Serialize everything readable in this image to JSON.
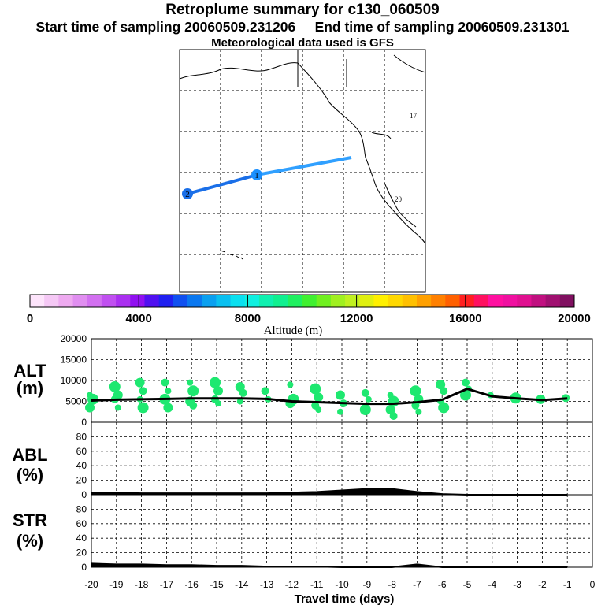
{
  "header": {
    "title": "Retroplume summary for c130_060509",
    "start_label": "Start time of sampling 20060509.231206",
    "end_label": "End time of sampling 20060509.231301",
    "met_label": "Meteorological data used is GFS"
  },
  "map": {
    "markers": [
      {
        "label": "1"
      },
      {
        "label": "2"
      }
    ],
    "annotations": [
      "17",
      "20"
    ]
  },
  "colorbar": {
    "title": "Altitude (m)",
    "tick_labels": [
      "0",
      "4000",
      "8000",
      "12000",
      "16000",
      "20000"
    ],
    "colors": [
      "#fde4fb",
      "#f5c8f5",
      "#eeaaf0",
      "#e08ef0",
      "#d270f0",
      "#c050f0",
      "#aa30f0",
      "#9010f0",
      "#5010f0",
      "#2020f0",
      "#1050f0",
      "#0a78f0",
      "#0aa0f0",
      "#0ac0f0",
      "#0ae0f0",
      "#10f0e0",
      "#10f0b0",
      "#10f090",
      "#20f060",
      "#40f030",
      "#70f020",
      "#a0f020",
      "#c0f020",
      "#e0f010",
      "#fff000",
      "#ffd800",
      "#ffc000",
      "#ffa000",
      "#ff8000",
      "#ff6000",
      "#ff2020",
      "#ff1060",
      "#ff10a0",
      "#f010a0",
      "#e01090",
      "#c01080",
      "#a01070",
      "#801060"
    ]
  },
  "chart_data": [
    {
      "type": "line",
      "panel": "altitude",
      "ylabel_line1": "ALT",
      "ylabel_line2": "(m)",
      "ylim": [
        0,
        20000
      ],
      "yticks": [
        "0",
        "5000",
        "10000",
        "15000",
        "20000"
      ],
      "x": [
        -20,
        -19,
        -18,
        -17,
        -16,
        -15,
        -14,
        -13,
        -12,
        -11,
        -10,
        -9,
        -8,
        -7,
        -6,
        -5,
        -4,
        -3,
        -2,
        -1
      ],
      "values": [
        5200,
        5400,
        5500,
        5600,
        5700,
        5700,
        5700,
        5600,
        5000,
        4800,
        4600,
        4400,
        4400,
        4800,
        5400,
        8000,
        6200,
        5700,
        5300,
        5700
      ],
      "spread": [
        {
          "x": -20,
          "alts": [
            6500,
            5500,
            3500
          ]
        },
        {
          "x": -19,
          "alts": [
            8500,
            6500,
            5500,
            3500
          ]
        },
        {
          "x": -18,
          "alts": [
            9500,
            7500,
            5500,
            3500
          ]
        },
        {
          "x": -17,
          "alts": [
            9500,
            7500,
            5500,
            3500
          ]
        },
        {
          "x": -16,
          "alts": [
            9500,
            7500,
            5000,
            4000
          ]
        },
        {
          "x": -15,
          "alts": [
            9500,
            7500,
            5500,
            4500
          ]
        },
        {
          "x": -14,
          "alts": [
            8500,
            7000,
            5000
          ]
        },
        {
          "x": -13,
          "alts": [
            7500,
            5500
          ]
        },
        {
          "x": -12,
          "alts": [
            9000,
            5500,
            4500
          ]
        },
        {
          "x": -11,
          "alts": [
            8000,
            6000,
            4000,
            3000
          ]
        },
        {
          "x": -10,
          "alts": [
            6500,
            4500,
            2500
          ]
        },
        {
          "x": -9,
          "alts": [
            7000,
            5500,
            3000
          ]
        },
        {
          "x": -8,
          "alts": [
            6500,
            5000,
            3000,
            1500
          ]
        },
        {
          "x": -7,
          "alts": [
            7500,
            5500,
            4000,
            2500
          ]
        },
        {
          "x": -6,
          "alts": [
            9000,
            7500,
            5000,
            3500
          ]
        },
        {
          "x": -5,
          "alts": [
            9500,
            8000,
            6500
          ]
        },
        {
          "x": -4,
          "alts": [
            6500
          ]
        },
        {
          "x": -3,
          "alts": [
            5800
          ]
        },
        {
          "x": -2,
          "alts": [
            5500
          ]
        },
        {
          "x": -1,
          "alts": [
            5800
          ]
        }
      ]
    },
    {
      "type": "area",
      "panel": "abl",
      "ylabel_line1": "ABL",
      "ylabel_line2": "(%)",
      "ylim": [
        0,
        100
      ],
      "yticks": [
        "0",
        "20",
        "40",
        "60",
        "80"
      ],
      "x": [
        -20,
        -19,
        -18,
        -17,
        -16,
        -15,
        -14,
        -13,
        -12,
        -11,
        -10,
        -9,
        -8,
        -7,
        -6,
        -5,
        -4,
        -3,
        -2,
        -1
      ],
      "values": [
        3,
        3,
        2,
        2,
        2,
        2,
        2,
        2,
        3,
        4,
        6,
        8,
        8,
        4,
        1,
        0,
        0,
        0,
        0,
        0
      ]
    },
    {
      "type": "area",
      "panel": "str",
      "ylabel_line1": "STR",
      "ylabel_line2": "(%)",
      "ylim": [
        0,
        100
      ],
      "yticks": [
        "0",
        "20",
        "40",
        "60",
        "80"
      ],
      "x": [
        -20,
        -19,
        -18,
        -17,
        -16,
        -15,
        -14,
        -13,
        -12,
        -11,
        -10,
        -9,
        -8,
        -7,
        -6,
        -5,
        -4,
        -3,
        -2,
        -1
      ],
      "values": [
        5,
        4,
        4,
        3,
        3,
        2,
        2,
        1,
        1,
        1,
        0,
        0,
        0,
        4,
        0,
        0,
        0,
        0,
        0,
        0
      ]
    }
  ],
  "xaxis": {
    "xlabel": "Travel time (days)",
    "xticks": [
      "-20",
      "-19",
      "-18",
      "-17",
      "-16",
      "-15",
      "-14",
      "-13",
      "-12",
      "-11",
      "-10",
      "-9",
      "-8",
      "-7",
      "-6",
      "-5",
      "-4",
      "-3",
      "-2",
      "-1",
      "0"
    ]
  }
}
